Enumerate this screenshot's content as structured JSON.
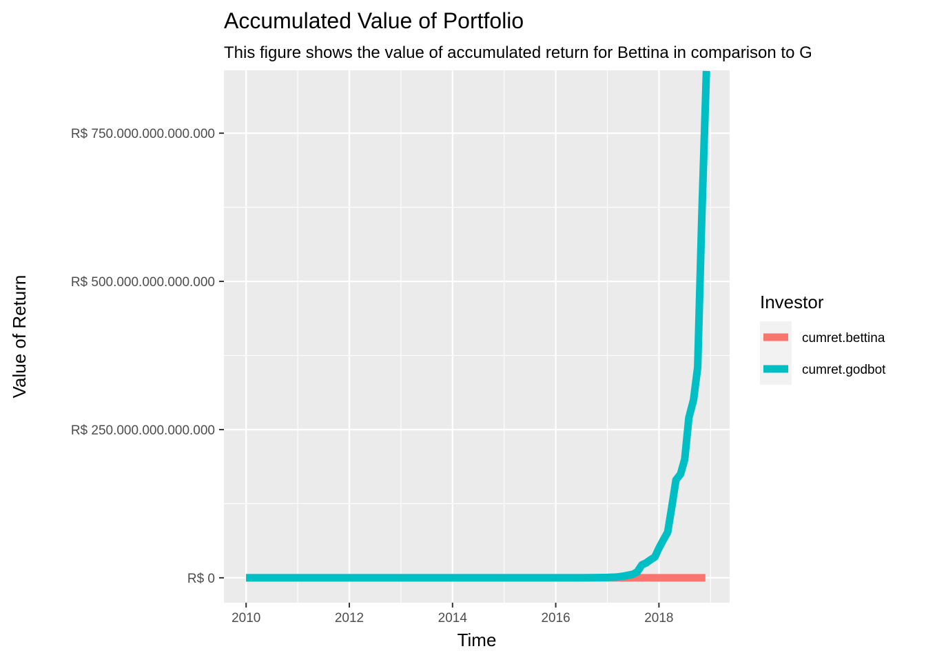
{
  "chart_data": {
    "type": "line",
    "title": "Accumulated Value of Portfolio",
    "subtitle": "This figure shows the value of accumulated return for Bettina in comparison to G",
    "xlabel": "Time",
    "ylabel": "Value of Return",
    "xlim": [
      2009.57,
      2019.37
    ],
    "ylim": [
      -42000000000000,
      856000000000000
    ],
    "x_ticks": [
      2010,
      2012,
      2014,
      2016,
      2018
    ],
    "x_tick_labels": [
      "2010",
      "2012",
      "2014",
      "2016",
      "2018"
    ],
    "y_ticks": [
      0,
      250000000000000,
      500000000000000,
      750000000000000
    ],
    "y_tick_labels": [
      "R$ 0",
      "R$ 250.000.000.000.000",
      "R$ 500.000.000.000.000",
      "R$ 750.000.000.000.000"
    ],
    "grid": true,
    "legend": {
      "title": "Investor",
      "position": "right"
    },
    "series": [
      {
        "name": "cumret.bettina",
        "color": "#F8766D",
        "x": [
          2010.0,
          2011.0,
          2012.0,
          2013.0,
          2014.0,
          2015.0,
          2016.0,
          2016.5,
          2017.0,
          2017.5,
          2018.0,
          2018.5,
          2018.9
        ],
        "y": [
          0,
          0,
          0,
          0,
          0,
          0,
          0,
          0,
          0,
          0,
          0,
          0,
          0
        ]
      },
      {
        "name": "cumret.godbot",
        "color": "#00BFC4",
        "x": [
          2010.0,
          2011.0,
          2012.0,
          2013.0,
          2014.0,
          2015.0,
          2016.0,
          2016.5,
          2016.83,
          2017.0,
          2017.17,
          2017.33,
          2017.5,
          2017.58,
          2017.67,
          2017.75,
          2017.83,
          2017.92,
          2018.0,
          2018.08,
          2018.17,
          2018.25,
          2018.33,
          2018.42,
          2018.5,
          2018.58,
          2018.67,
          2018.75,
          2018.83,
          2018.92
        ],
        "y": [
          0,
          0,
          0,
          0,
          0,
          0,
          0,
          0,
          300000000000,
          600000000000,
          1200000000000,
          3000000000000,
          6000000000000,
          10000000000000,
          22000000000000,
          25000000000000,
          30000000000000,
          35000000000000,
          50000000000000,
          63000000000000,
          77000000000000,
          120000000000000,
          165000000000000,
          175000000000000,
          200000000000000,
          270000000000000,
          300000000000000,
          355000000000000,
          610000000000000,
          855000000000000
        ]
      }
    ]
  }
}
